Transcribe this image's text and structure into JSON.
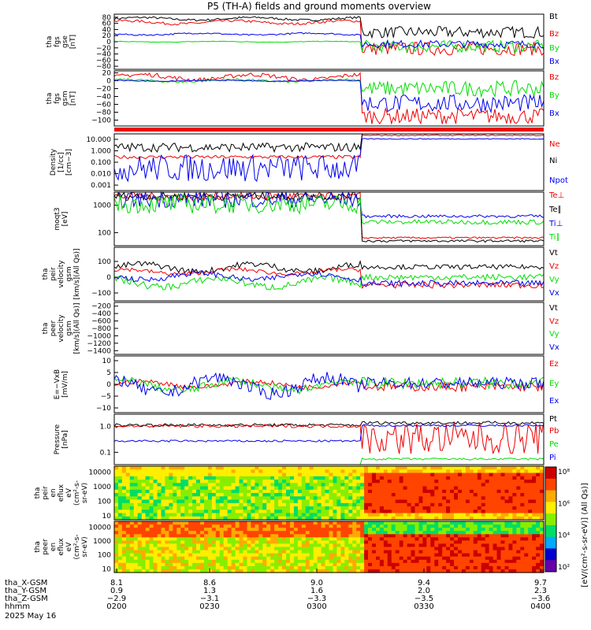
{
  "title": "P5 (TH-A) fields and ground moments overview",
  "colors": {
    "black": "#000000",
    "red": "#ee0000",
    "green": "#00dd00",
    "blue": "#0000ee"
  },
  "chart_data": [
    {
      "type": "line",
      "ylabel": [
        "tha",
        "fgs",
        "gse",
        "[nT]"
      ],
      "ticks": [
        "80",
        "60",
        "40",
        "20",
        "0",
        "−20",
        "−40",
        "−60",
        "−80"
      ],
      "ylim": [
        -90,
        90
      ],
      "series": [
        {
          "name": "Bt",
          "color": "black",
          "pre": [
            68,
            82
          ],
          "post": [
            12,
            50
          ]
        },
        {
          "name": "Bz",
          "color": "red",
          "pre": [
            55,
            72
          ],
          "post": [
            -45,
            0
          ]
        },
        {
          "name": "By",
          "color": "green",
          "pre": [
            -2,
            2
          ],
          "post": [
            -35,
            5
          ]
        },
        {
          "name": "Bx",
          "color": "blue",
          "pre": [
            20,
            30
          ],
          "post": [
            -20,
            5
          ]
        }
      ]
    },
    {
      "type": "line",
      "ylabel": [
        "tha",
        "fgs",
        "gsm",
        "[nT]"
      ],
      "ticks": [
        "20",
        "0",
        "−20",
        "−40",
        "−60",
        "−80",
        "−100"
      ],
      "ylim": [
        -115,
        25
      ],
      "series": [
        {
          "name": "Bz",
          "color": "red",
          "pre": [
            -2,
            20
          ],
          "post": [
            -110,
            -70
          ]
        },
        {
          "name": "By",
          "color": "green",
          "pre": [
            -5,
            5
          ],
          "post": [
            -40,
            0
          ]
        },
        {
          "name": "Bx",
          "color": "blue",
          "pre": [
            -2,
            2
          ],
          "post": [
            -80,
            -35
          ]
        }
      ]
    },
    {
      "type": "line",
      "ylabel": [
        "Density",
        "[1/cc]",
        "[cm−3]"
      ],
      "ticks": [
        "10.000",
        "1.000",
        "0.100",
        "0.010",
        "0.001"
      ],
      "log": true,
      "series": [
        {
          "name": "Ne",
          "color": "red",
          "pre": [
            0.2,
            0.4
          ],
          "post": [
            20,
            25
          ]
        },
        {
          "name": "Ni",
          "color": "black",
          "pre": [
            0.8,
            5
          ],
          "post": [
            30,
            40
          ]
        },
        {
          "name": "Npot",
          "color": "blue",
          "pre": [
            0.002,
            0.5
          ],
          "post": [
            10,
            12
          ]
        }
      ]
    },
    {
      "type": "line",
      "ylabel": [
        "moqt3",
        "[eV]"
      ],
      "ticks": [
        "1000",
        "100"
      ],
      "log": true,
      "series": [
        {
          "name": "Te⊥",
          "color": "red",
          "pre": [
            1500,
            3000
          ],
          "post": [
            60,
            70
          ]
        },
        {
          "name": "Te∥",
          "color": "black",
          "pre": [
            1500,
            3000
          ],
          "post": [
            45,
            55
          ]
        },
        {
          "name": "Ti⊥",
          "color": "blue",
          "pre": [
            800,
            3500
          ],
          "post": [
            350,
            450
          ]
        },
        {
          "name": "Ti∥",
          "color": "green",
          "pre": [
            500,
            2500
          ],
          "post": [
            200,
            300
          ]
        }
      ]
    },
    {
      "type": "line",
      "ylabel": [
        "tha",
        "peir",
        "velocity",
        "gsm",
        "[km/s](All Qs)]"
      ],
      "ticks": [
        "100",
        "0",
        "−100"
      ],
      "ylim": [
        -150,
        190
      ],
      "series": [
        {
          "name": "Vt",
          "color": "black",
          "pre": [
            20,
            100
          ],
          "post": [
            50,
            80
          ]
        },
        {
          "name": "Vz",
          "color": "red",
          "pre": [
            10,
            60
          ],
          "post": [
            -70,
            -30
          ]
        },
        {
          "name": "Vy",
          "color": "green",
          "pre": [
            -80,
            10
          ],
          "post": [
            -20,
            20
          ]
        },
        {
          "name": "Vx",
          "color": "blue",
          "pre": [
            -30,
            40
          ],
          "post": [
            -60,
            -20
          ]
        }
      ]
    },
    {
      "type": "line",
      "ylabel": [
        "tha",
        "peer",
        "velocity",
        "gsm",
        "[km/s](All Qs)]"
      ],
      "ticks": [
        "−200",
        "−400",
        "−600",
        "−800",
        "−1000",
        "−1200",
        "−1400"
      ],
      "ylim": [
        -1500,
        -100
      ],
      "series": [
        {
          "name": "Vt",
          "color": "black"
        },
        {
          "name": "Vz",
          "color": "red"
        },
        {
          "name": "Vy",
          "color": "green"
        },
        {
          "name": "Vx",
          "color": "blue"
        }
      ]
    },
    {
      "type": "line",
      "ylabel": [
        "E=−VxB",
        "[mV/m]"
      ],
      "ticks": [
        "10",
        "5",
        "0",
        "−5",
        "−10"
      ],
      "ylim": [
        -12,
        12
      ],
      "series": [
        {
          "name": "Ez",
          "color": "red",
          "pre": [
            -2,
            2
          ],
          "post": [
            -3,
            1
          ]
        },
        {
          "name": "Ey",
          "color": "green",
          "pre": [
            -4,
            3
          ],
          "post": [
            -2,
            3
          ]
        },
        {
          "name": "Ex",
          "color": "blue",
          "pre": [
            -6,
            5
          ],
          "post": [
            -2,
            3
          ]
        }
      ]
    },
    {
      "type": "line",
      "ylabel": [
        "Pressure",
        "[nPa]"
      ],
      "ticks": [
        "1.0",
        "0.1"
      ],
      "log": true,
      "series": [
        {
          "name": "Pt",
          "color": "black",
          "pre": [
            1.0,
            1.3
          ],
          "post": [
            1.2,
            1.6
          ]
        },
        {
          "name": "Pb",
          "color": "red",
          "pre": [
            0.9,
            1.2
          ],
          "post": [
            0.08,
            1.5
          ]
        },
        {
          "name": "Pe",
          "color": "green",
          "pre": [
            0.02,
            0.03
          ],
          "post": [
            0.05,
            0.06
          ]
        },
        {
          "name": "Pi",
          "color": "blue",
          "pre": [
            0.25,
            0.3
          ],
          "post": [
            1.0,
            1.2
          ]
        }
      ]
    },
    {
      "type": "heatmap",
      "ylabel": [
        "tha",
        "peir",
        "en",
        "eflux",
        "eV",
        "(cm²-s-",
        "sr-eV)"
      ],
      "ticks": [
        "10000",
        "1000",
        "100",
        "10"
      ]
    },
    {
      "type": "heatmap",
      "ylabel": [
        "tha",
        "peer",
        "en",
        "eflux",
        "eV",
        "(cm²-s-",
        "sr-eV)"
      ],
      "ticks": [
        "10000",
        "1000",
        "100",
        "10"
      ]
    }
  ],
  "colorbar": {
    "ticks": [
      "10⁸",
      "10⁶",
      "10⁴",
      "10²"
    ],
    "label": "[eV/(cm²-s-sr-eV)] (All Qs)]"
  },
  "time_axis": {
    "rows": [
      {
        "label": "tha_X-GSM",
        "values": [
          "8.1",
          "8.6",
          "9.0",
          "9.4",
          "9.7"
        ]
      },
      {
        "label": "tha_Y-GSM",
        "values": [
          "0.9",
          "1.3",
          "1.6",
          "2.0",
          "2.3"
        ]
      },
      {
        "label": "tha_Z-GSM",
        "values": [
          "−2.9",
          "−3.1",
          "−3.3",
          "−3.5",
          "−3.6"
        ]
      },
      {
        "label": "hhmm",
        "values": [
          "0200",
          "0230",
          "0300",
          "0330",
          "0400"
        ]
      }
    ],
    "date": "2025 May 16"
  }
}
